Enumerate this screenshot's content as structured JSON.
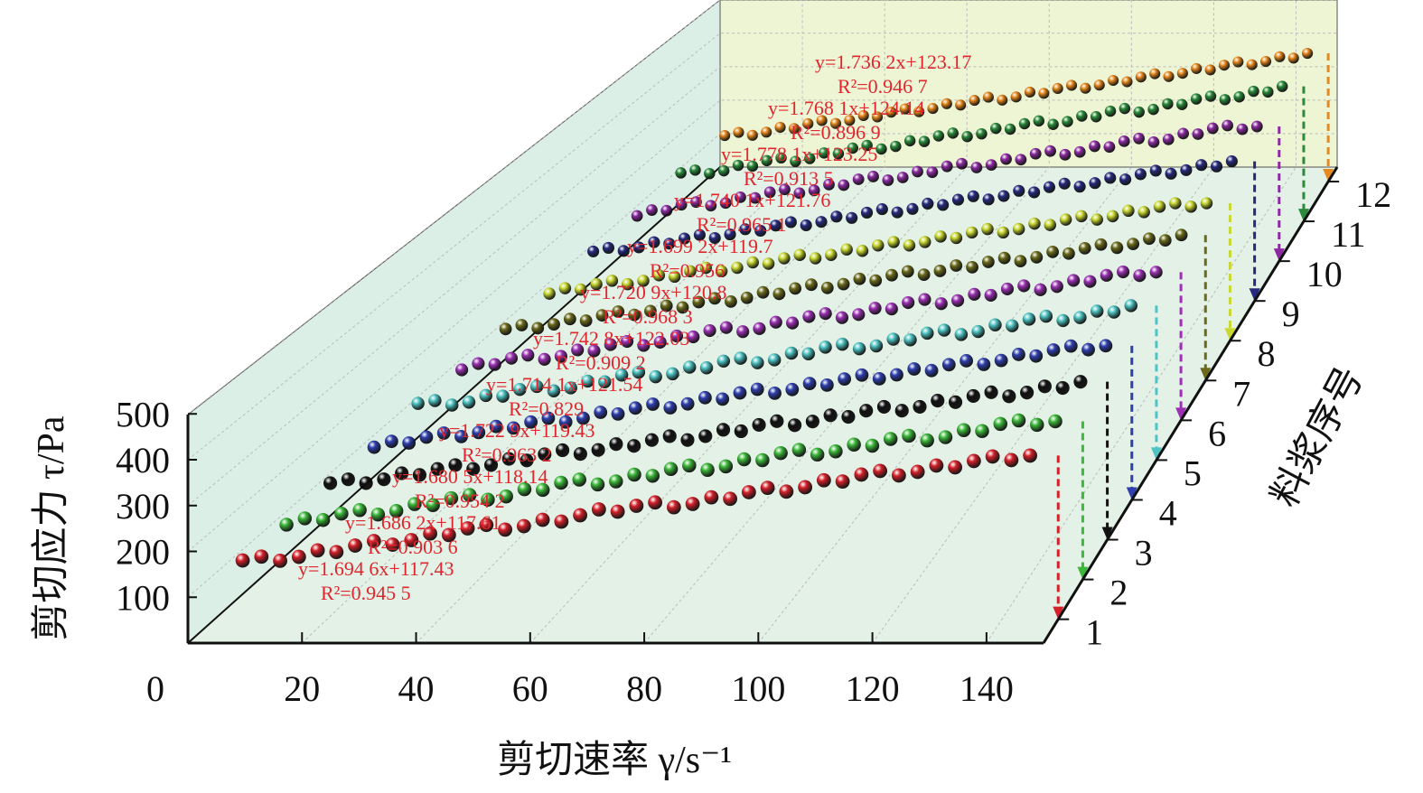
{
  "chart_data": {
    "type": "scatter",
    "projection": "3d-stacked",
    "xlabel": "剪切速率 γ/s⁻¹",
    "ylabel": "剪切应力 τ/Pa",
    "zlabel": "料浆序号",
    "xlim": [
      0,
      150
    ],
    "ylim": [
      0,
      500
    ],
    "x_ticks": [
      "0",
      "20",
      "40",
      "60",
      "80",
      "100",
      "120",
      "140"
    ],
    "y_ticks": [
      "100",
      "200",
      "300",
      "400",
      "500"
    ],
    "z_ticks": [
      "1",
      "2",
      "3",
      "4",
      "5",
      "6",
      "7",
      "8",
      "9",
      "10",
      "11",
      "12"
    ],
    "grid": true,
    "colors": {
      "left_wall": "#dcefe6",
      "floor": "#e3f1e6",
      "back_wall": "#eef5d4",
      "equation": "#e0262e"
    },
    "x": [
      5,
      15,
      25,
      35,
      45,
      55,
      65,
      75,
      85,
      95,
      105,
      115,
      125,
      135,
      145
    ],
    "series": [
      {
        "slurry": "1",
        "color": "#d42029",
        "equation": "y=1.694 6x+117.43",
        "r2": "R²=0.945 5",
        "y": [
          130,
          138,
          163,
          175,
          201,
          206,
          230,
          251,
          255,
          281,
          292,
          320,
          326,
          350,
          362
        ]
      },
      {
        "slurry": "2",
        "color": "#3cb83a",
        "equation": "y=1.686 2x+117.61",
        "r2": "R²=0.903 6",
        "y": [
          124,
          149,
          155,
          184,
          188,
          219,
          222,
          250,
          256,
          286,
          290,
          318,
          322,
          352,
          358
        ]
      },
      {
        "slurry": "3",
        "color": "#111111",
        "equation": "y=1.680 5x+118.14",
        "r2": "R²=0.954 2",
        "y": [
          131,
          140,
          164,
          173,
          198,
          208,
          231,
          240,
          266,
          274,
          299,
          308,
          333,
          341,
          366
        ]
      },
      {
        "slurry": "4",
        "color": "#2f3fae",
        "equation": "y=1.722 9x+119.43",
        "r2": "R²=0.963 2",
        "y": [
          125,
          149,
          160,
          185,
          194,
          218,
          228,
          254,
          262,
          287,
          297,
          321,
          331,
          356,
          366
        ]
      },
      {
        "slurry": "5",
        "color": "#4ec3c3",
        "equation": "y=1.714 1x+121.54",
        "r2": "R²=0.829",
        "y": [
          138,
          141,
          172,
          176,
          207,
          210,
          241,
          244,
          275,
          278,
          309,
          313,
          343,
          347,
          376
        ]
      },
      {
        "slurry": "6",
        "color": "#9b30b3",
        "equation": "y=1.742 8x+122.03",
        "r2": "R²=0.909 2",
        "y": [
          126,
          155,
          160,
          189,
          195,
          224,
          229,
          259,
          264,
          294,
          299,
          328,
          334,
          362,
          370
        ]
      },
      {
        "slurry": "7",
        "color": "#6b6a1c",
        "equation": "y=1.720 9x+120.8",
        "r2": "R²=0.968 3",
        "y": [
          132,
          144,
          167,
          178,
          201,
          212,
          236,
          247,
          270,
          281,
          304,
          316,
          339,
          350,
          373
        ]
      },
      {
        "slurry": "8",
        "color": "#c9d831",
        "equation": "y=1.699 2x+119.7",
        "r2": "R²=0.956",
        "y": [
          124,
          149,
          158,
          183,
          192,
          217,
          226,
          251,
          260,
          285,
          294,
          319,
          328,
          353,
          362
        ]
      },
      {
        "slurry": "9",
        "color": "#262a7e",
        "equation": "y=1.740 1x+121.76",
        "r2": "R²=0.965 1",
        "y": [
          134,
          145,
          169,
          180,
          204,
          214,
          239,
          249,
          274,
          284,
          308,
          319,
          343,
          354,
          378
        ]
      },
      {
        "slurry": "10",
        "color": "#8c2aa2",
        "equation": "y=1.778 1x+123.25",
        "r2": "R²=0.913 5",
        "y": [
          126,
          157,
          162,
          192,
          197,
          228,
          233,
          264,
          268,
          299,
          304,
          334,
          339,
          370,
          375
        ]
      },
      {
        "slurry": "11",
        "color": "#2b8b3b",
        "equation": "y=1.768 1x+124.14",
        "r2": "R²=0.896 9",
        "y": [
          139,
          145,
          174,
          180,
          210,
          215,
          245,
          251,
          280,
          286,
          316,
          321,
          351,
          357,
          387
        ]
      },
      {
        "slurry": "12",
        "color": "#e8891f",
        "equation": "y=1.736 2x+123.17",
        "r2": "R²=0.946 7",
        "y": [
          136,
          146,
          171,
          181,
          205,
          216,
          240,
          250,
          275,
          285,
          309,
          320,
          344,
          355,
          379
        ]
      }
    ]
  }
}
